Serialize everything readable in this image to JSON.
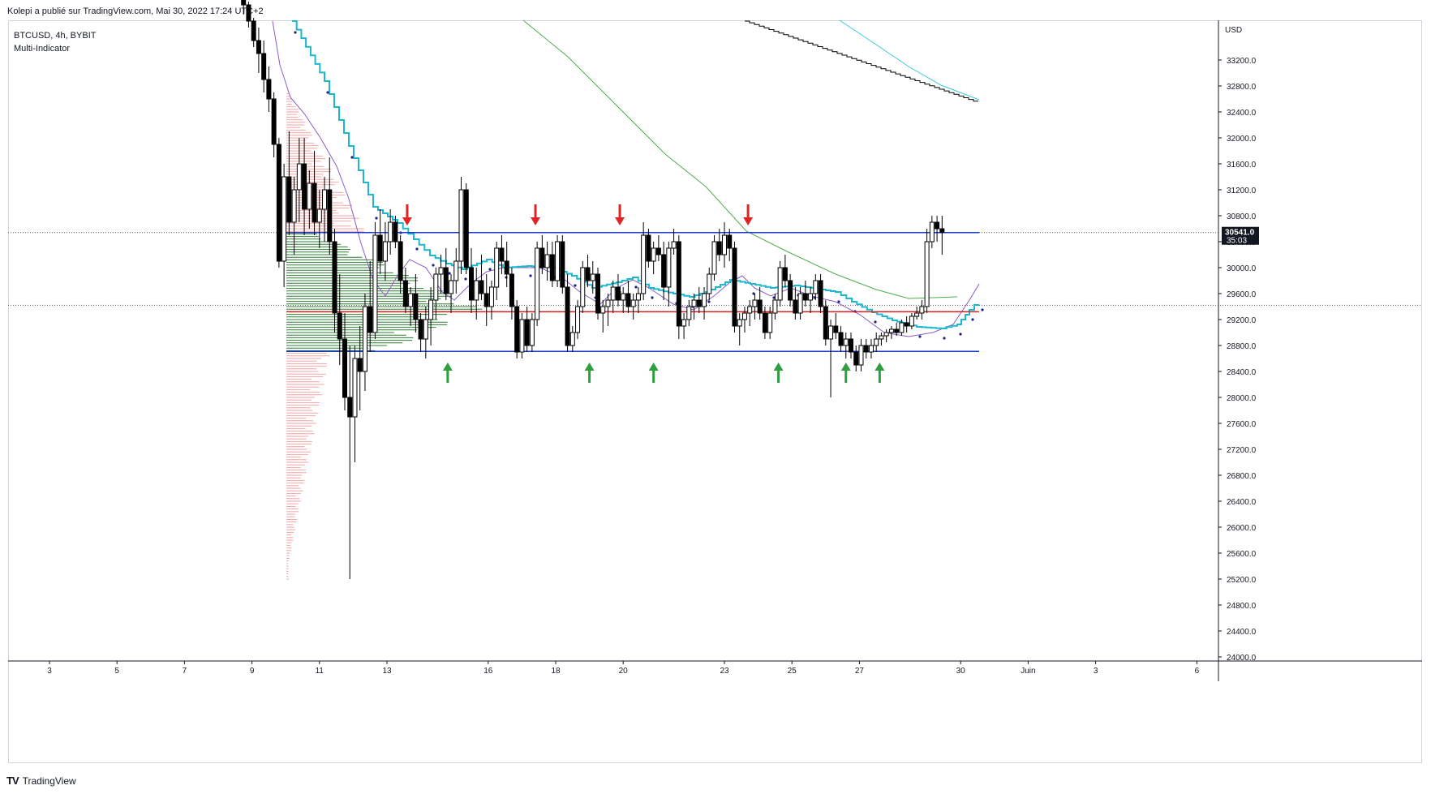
{
  "caption": "Kolepi a publié sur TradingView.com, Mai 30, 2022 17:24 UTC+2",
  "legend": {
    "symbol": "BTCUSD, 4h, BYBIT",
    "indicator": "Multi-Indicator"
  },
  "price_axis": {
    "currency": "USD",
    "last_price": "30541.0",
    "countdown": "35:03"
  },
  "footer": {
    "logo": "TV",
    "brand": "TradingView"
  },
  "colors": {
    "candle_up": "#ffffff",
    "candle_down": "#000000",
    "wick": "#000000",
    "support_resistance": "#1a3cc8",
    "mid_line": "#d82020",
    "cyan_trail": "#1bb8d0",
    "purple_ma": "#8a5cc4",
    "green_ma": "#4cae4c",
    "black_ma": "#000000",
    "light_cyan_ma": "#3ec6e0",
    "dots": "#1a237e",
    "volume_profile_inside": "#2e7d32",
    "volume_profile_outside": "#f4a6a6",
    "arrow_up": "#2e9e3e",
    "arrow_down": "#e02424"
  },
  "chart_data": {
    "type": "candlestick",
    "title": "",
    "xlabel": "",
    "ylabel": "",
    "ylim": [
      24000,
      33600
    ],
    "x_ticks": [
      "3",
      "5",
      "7",
      "9",
      "11",
      "13",
      "16",
      "18",
      "20",
      "23",
      "25",
      "27",
      "30",
      "Juin",
      "3",
      "6"
    ],
    "y_ticks": [
      "33200.0",
      "32800.0",
      "32400.0",
      "32000.0",
      "31600.0",
      "31200.0",
      "30800.0",
      "30400.0",
      "30000.0",
      "29600.0",
      "29200.0",
      "28800.0",
      "28400.0",
      "28000.0",
      "27600.0",
      "27200.0",
      "26800.0",
      "26400.0",
      "26000.0",
      "25600.0",
      "25200.0",
      "24800.0",
      "24400.0",
      "24000.0"
    ],
    "horizontal_levels": [
      {
        "name": "resistance",
        "price": 30540
      },
      {
        "name": "mid",
        "price": 29320
      },
      {
        "name": "support",
        "price": 28710
      }
    ],
    "arrows_down": [
      13.6,
      17.4,
      19.9,
      23.7
    ],
    "arrows_up": [
      14.8,
      19.0,
      20.9,
      24.6,
      26.6,
      27.6
    ],
    "candles_summary": "4h candles from ~8.8 to ~30.6; sell-off to low 25200 on day 12, then range 28700–30540, breakout to ~30800 on day 30",
    "candles": [
      [
        8.75,
        34400,
        34500,
        33900,
        34050
      ],
      [
        8.9,
        34050,
        34100,
        33700,
        33800
      ],
      [
        9.05,
        33800,
        33850,
        33400,
        33500
      ],
      [
        9.2,
        33500,
        33700,
        33000,
        33300
      ],
      [
        9.35,
        33300,
        33500,
        32700,
        32900
      ],
      [
        9.5,
        32900,
        33100,
        32400,
        32600
      ],
      [
        9.65,
        32600,
        32700,
        31700,
        31900
      ],
      [
        9.8,
        31900,
        32000,
        30000,
        30100
      ],
      [
        9.95,
        30100,
        31600,
        29700,
        31400
      ],
      [
        10.1,
        31400,
        32100,
        30500,
        30700
      ],
      [
        10.25,
        30700,
        31400,
        30200,
        31200
      ],
      [
        10.4,
        31200,
        32000,
        30700,
        31600
      ],
      [
        10.55,
        31600,
        32000,
        30500,
        30900
      ],
      [
        10.7,
        30900,
        31500,
        30600,
        31300
      ],
      [
        10.85,
        31300,
        31800,
        30500,
        30700
      ],
      [
        11.0,
        30700,
        31200,
        30300,
        30900
      ],
      [
        11.15,
        30900,
        31400,
        30400,
        31200
      ],
      [
        11.3,
        31200,
        31700,
        30200,
        30400
      ],
      [
        11.45,
        30400,
        30600,
        29000,
        29300
      ],
      [
        11.6,
        29300,
        29900,
        28500,
        28900
      ],
      [
        11.75,
        28900,
        29300,
        27800,
        28000
      ],
      [
        11.9,
        28000,
        28800,
        25200,
        27700
      ],
      [
        12.05,
        27700,
        28800,
        27000,
        28600
      ],
      [
        12.2,
        28600,
        29100,
        27800,
        28400
      ],
      [
        12.35,
        28400,
        29600,
        28100,
        29400
      ],
      [
        12.5,
        29400,
        30100,
        28700,
        29000
      ],
      [
        12.65,
        29000,
        30700,
        28900,
        30500
      ],
      [
        12.8,
        30500,
        30900,
        29900,
        30100
      ],
      [
        12.95,
        30100,
        30700,
        29800,
        30400
      ],
      [
        13.1,
        30400,
        30900,
        30200,
        30700
      ],
      [
        13.25,
        30700,
        30800,
        30300,
        30400
      ],
      [
        13.4,
        30400,
        30500,
        29600,
        29800
      ],
      [
        13.55,
        29800,
        30000,
        29300,
        29400
      ],
      [
        13.7,
        29400,
        29700,
        29100,
        29600
      ],
      [
        13.85,
        29600,
        29900,
        29000,
        29200
      ],
      [
        14.0,
        29200,
        29300,
        28700,
        28900
      ],
      [
        14.15,
        28900,
        29400,
        28600,
        29200
      ],
      [
        14.3,
        29200,
        29700,
        28800,
        29500
      ],
      [
        14.45,
        29500,
        30000,
        29200,
        29900
      ],
      [
        14.6,
        29900,
        30200,
        29600,
        30000
      ],
      [
        14.75,
        30000,
        30300,
        29500,
        29600
      ],
      [
        14.9,
        29600,
        29900,
        29300,
        29800
      ],
      [
        15.05,
        29800,
        30300,
        29600,
        30100
      ],
      [
        15.2,
        30100,
        31400,
        29900,
        31200
      ],
      [
        15.35,
        31200,
        31300,
        29900,
        30000
      ],
      [
        15.5,
        30000,
        30300,
        29300,
        29500
      ],
      [
        15.65,
        29500,
        30000,
        29200,
        29800
      ],
      [
        15.8,
        29800,
        30200,
        29500,
        29600
      ],
      [
        15.95,
        29600,
        29900,
        29100,
        29400
      ],
      [
        16.1,
        29400,
        29800,
        29200,
        29700
      ],
      [
        16.25,
        29700,
        30400,
        29500,
        30300
      ],
      [
        16.4,
        30300,
        30500,
        29900,
        30100
      ],
      [
        16.55,
        30100,
        30400,
        29700,
        29900
      ],
      [
        16.7,
        29900,
        30000,
        29200,
        29400
      ],
      [
        16.85,
        29400,
        29500,
        28600,
        28700
      ],
      [
        17.0,
        28700,
        29300,
        28600,
        29200
      ],
      [
        17.15,
        29200,
        29400,
        28700,
        28800
      ],
      [
        17.3,
        28800,
        29300,
        28700,
        29200
      ],
      [
        17.45,
        29200,
        30400,
        29100,
        30300
      ],
      [
        17.6,
        30300,
        30500,
        29900,
        30000
      ],
      [
        17.75,
        30000,
        30400,
        29800,
        30200
      ],
      [
        17.9,
        30200,
        30400,
        29700,
        29800
      ],
      [
        18.05,
        29800,
        30500,
        29700,
        30400
      ],
      [
        18.2,
        30400,
        30500,
        29600,
        29700
      ],
      [
        18.35,
        29700,
        29900,
        28700,
        28800
      ],
      [
        18.5,
        28800,
        29100,
        28700,
        29000
      ],
      [
        18.65,
        29000,
        29500,
        28900,
        29400
      ],
      [
        18.8,
        29400,
        30100,
        29300,
        30000
      ],
      [
        18.95,
        30000,
        30200,
        29700,
        29800
      ],
      [
        19.1,
        29800,
        30100,
        29600,
        29900
      ],
      [
        19.25,
        29900,
        30000,
        29200,
        29300
      ],
      [
        19.4,
        29300,
        29500,
        29000,
        29400
      ],
      [
        19.55,
        29400,
        29600,
        29100,
        29500
      ],
      [
        19.7,
        29500,
        29800,
        29300,
        29700
      ],
      [
        19.85,
        29700,
        29900,
        29400,
        29500
      ],
      [
        20.0,
        29500,
        29700,
        29300,
        29600
      ],
      [
        20.15,
        29600,
        29800,
        29300,
        29400
      ],
      [
        20.3,
        29400,
        29600,
        29200,
        29500
      ],
      [
        20.45,
        29500,
        29700,
        29300,
        29600
      ],
      [
        20.6,
        29600,
        30700,
        29500,
        30500
      ],
      [
        20.75,
        30500,
        30600,
        30000,
        30100
      ],
      [
        20.9,
        30100,
        30400,
        29900,
        30300
      ],
      [
        21.05,
        30300,
        30500,
        30100,
        30200
      ],
      [
        21.2,
        30200,
        30400,
        29500,
        29700
      ],
      [
        21.35,
        29700,
        30400,
        29400,
        30300
      ],
      [
        21.5,
        30300,
        30600,
        30200,
        30400
      ],
      [
        21.65,
        30400,
        30500,
        28900,
        29100
      ],
      [
        21.8,
        29100,
        29300,
        28900,
        29200
      ],
      [
        21.95,
        29200,
        29500,
        29100,
        29400
      ],
      [
        22.1,
        29400,
        29600,
        29200,
        29500
      ],
      [
        22.25,
        29500,
        29700,
        29300,
        29400
      ],
      [
        22.4,
        29400,
        29700,
        29200,
        29600
      ],
      [
        22.55,
        29600,
        30000,
        29500,
        29900
      ],
      [
        22.7,
        29900,
        30500,
        29800,
        30400
      ],
      [
        22.85,
        30400,
        30600,
        30100,
        30200
      ],
      [
        23.0,
        30200,
        30700,
        30000,
        30500
      ],
      [
        23.15,
        30500,
        30600,
        30100,
        30300
      ],
      [
        23.3,
        30300,
        30400,
        29000,
        29100
      ],
      [
        23.45,
        29100,
        29300,
        28800,
        29200
      ],
      [
        23.6,
        29200,
        29400,
        29000,
        29300
      ],
      [
        23.75,
        29300,
        29500,
        29100,
        29400
      ],
      [
        23.9,
        29400,
        29600,
        29200,
        29500
      ],
      [
        24.05,
        29500,
        29700,
        29200,
        29300
      ],
      [
        24.2,
        29300,
        29400,
        28900,
        29000
      ],
      [
        24.35,
        29000,
        29400,
        28900,
        29300
      ],
      [
        24.5,
        29300,
        29600,
        29200,
        29500
      ],
      [
        24.65,
        29500,
        30100,
        29400,
        30000
      ],
      [
        24.8,
        30000,
        30200,
        29700,
        29800
      ],
      [
        24.95,
        29800,
        29900,
        29400,
        29500
      ],
      [
        25.1,
        29500,
        29700,
        29200,
        29300
      ],
      [
        25.25,
        29300,
        29700,
        29200,
        29600
      ],
      [
        25.4,
        29600,
        29800,
        29400,
        29500
      ],
      [
        25.55,
        29500,
        29700,
        29300,
        29600
      ],
      [
        25.7,
        29600,
        29900,
        29500,
        29800
      ],
      [
        25.85,
        29800,
        29900,
        29300,
        29400
      ],
      [
        26.0,
        29400,
        29500,
        28800,
        28900
      ],
      [
        26.15,
        28900,
        29200,
        28000,
        29100
      ],
      [
        26.3,
        29100,
        29300,
        28900,
        29000
      ],
      [
        26.45,
        29000,
        29100,
        28700,
        28800
      ],
      [
        26.6,
        28800,
        29000,
        28600,
        28900
      ],
      [
        26.75,
        28900,
        29000,
        28600,
        28700
      ],
      [
        26.9,
        28700,
        28800,
        28400,
        28500
      ],
      [
        27.05,
        28500,
        28900,
        28400,
        28800
      ],
      [
        27.2,
        28800,
        28900,
        28600,
        28700
      ],
      [
        27.35,
        28700,
        28900,
        28600,
        28800
      ],
      [
        27.5,
        28800,
        29000,
        28700,
        28900
      ],
      [
        27.65,
        28900,
        29000,
        28800,
        28950
      ],
      [
        27.8,
        28950,
        29050,
        28850,
        29000
      ],
      [
        27.95,
        29000,
        29100,
        28900,
        29050
      ],
      [
        28.1,
        29050,
        29150,
        28950,
        29000
      ],
      [
        28.25,
        29000,
        29200,
        28950,
        29150
      ],
      [
        28.4,
        29150,
        29250,
        29000,
        29100
      ],
      [
        28.55,
        29100,
        29300,
        29050,
        29250
      ],
      [
        28.7,
        29250,
        29400,
        29200,
        29300
      ],
      [
        28.85,
        29300,
        29500,
        29200,
        29400
      ],
      [
        29.0,
        29400,
        30600,
        29300,
        30400
      ],
      [
        29.15,
        30400,
        30800,
        30300,
        30700
      ],
      [
        29.3,
        30700,
        30800,
        30400,
        30600
      ],
      [
        29.45,
        30600,
        30800,
        30200,
        30541
      ]
    ]
  }
}
